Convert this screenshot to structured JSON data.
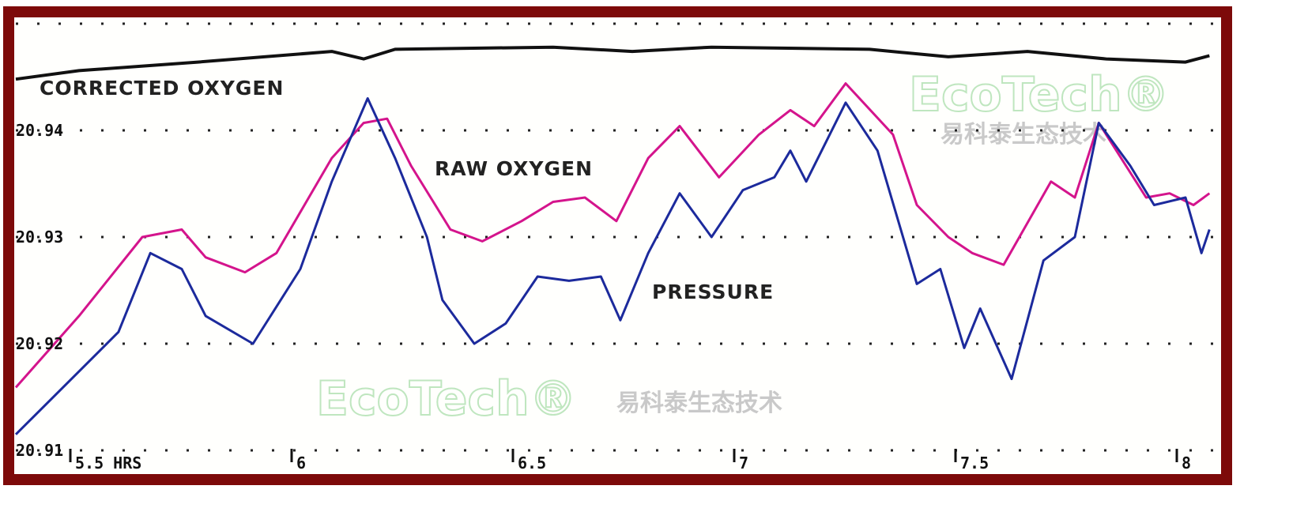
{
  "chart_data": {
    "type": "line",
    "title": "",
    "xlabel": "",
    "ylabel": "",
    "xlim": [
      5.36,
      8.06
    ],
    "ylim": [
      20.907,
      20.951
    ],
    "grid": true,
    "x_ticks": [
      {
        "value": 5.5,
        "label": "5.5 HRS"
      },
      {
        "value": 6,
        "label": "6"
      },
      {
        "value": 6.5,
        "label": "6.5"
      },
      {
        "value": 7,
        "label": "7"
      },
      {
        "value": 7.5,
        "label": "7.5"
      },
      {
        "value": 8,
        "label": "8"
      }
    ],
    "y_ticks": [
      {
        "value": 20.94,
        "label": "20.94"
      },
      {
        "value": 20.93,
        "label": "20.93"
      },
      {
        "value": 20.92,
        "label": "20.92"
      },
      {
        "value": 20.91,
        "label": "20.91"
      }
    ],
    "series": [
      {
        "name": "CORRECTED OXYGEN",
        "color": "#111111",
        "x": [
          5.366,
          5.509,
          5.777,
          6.08,
          6.152,
          6.223,
          6.58,
          6.759,
          6.938,
          7.295,
          7.473,
          7.652,
          7.83,
          8.009,
          8.063
        ],
        "y": [
          20.9448,
          20.9456,
          20.9464,
          20.9474,
          20.9467,
          20.9476,
          20.9478,
          20.9474,
          20.9478,
          20.9476,
          20.9469,
          20.9474,
          20.9467,
          20.9464,
          20.947
        ]
      },
      {
        "name": "RAW OXYGEN",
        "color": "#d4148c",
        "x": [
          5.366,
          5.509,
          5.652,
          5.741,
          5.795,
          5.884,
          5.955,
          6.08,
          6.152,
          6.205,
          6.259,
          6.348,
          6.42,
          6.509,
          6.58,
          6.652,
          6.723,
          6.795,
          6.866,
          6.955,
          7.045,
          7.116,
          7.17,
          7.241,
          7.348,
          7.402,
          7.473,
          7.527,
          7.598,
          7.705,
          7.759,
          7.813,
          7.92,
          7.973,
          8.027,
          8.063
        ],
        "y": [
          20.9159,
          20.9226,
          20.93,
          20.9307,
          20.9281,
          20.9267,
          20.9285,
          20.9374,
          20.9407,
          20.9411,
          20.9367,
          20.9307,
          20.9296,
          20.9315,
          20.9333,
          20.9337,
          20.9315,
          20.9374,
          20.9404,
          20.9356,
          20.9396,
          20.9419,
          20.9404,
          20.9444,
          20.9396,
          20.933,
          20.93,
          20.9285,
          20.9274,
          20.9352,
          20.9337,
          20.9407,
          20.9337,
          20.9341,
          20.933,
          20.9341
        ]
      },
      {
        "name": "PRESSURE",
        "color": "#1c2a9c",
        "x": [
          5.366,
          5.509,
          5.598,
          5.67,
          5.741,
          5.795,
          5.902,
          6.009,
          6.08,
          6.161,
          6.223,
          6.295,
          6.33,
          6.402,
          6.473,
          6.545,
          6.616,
          6.688,
          6.732,
          6.795,
          6.866,
          6.938,
          7.009,
          7.08,
          7.116,
          7.152,
          7.241,
          7.313,
          7.402,
          7.455,
          7.509,
          7.545,
          7.616,
          7.688,
          7.759,
          7.813,
          7.884,
          7.938,
          8.009,
          8.045,
          8.063
        ],
        "y": [
          20.9115,
          20.9174,
          20.9211,
          20.9285,
          20.927,
          20.9226,
          20.92,
          20.927,
          20.9352,
          20.943,
          20.9374,
          20.93,
          20.9241,
          20.92,
          20.9219,
          20.9263,
          20.9259,
          20.9263,
          20.9222,
          20.9285,
          20.9341,
          20.93,
          20.9344,
          20.9356,
          20.9381,
          20.9352,
          20.9426,
          20.9381,
          20.9256,
          20.927,
          20.9196,
          20.9233,
          20.9167,
          20.9278,
          20.93,
          20.9407,
          20.9367,
          20.933,
          20.9337,
          20.9285,
          20.9307
        ]
      }
    ],
    "frame_color": "#7d0a0a"
  },
  "watermark": {
    "brand": "EcoTech®",
    "chinese": "易科泰生态技术"
  }
}
